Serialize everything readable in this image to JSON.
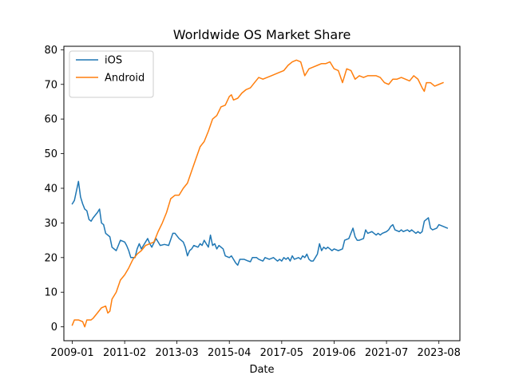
{
  "chart_data": {
    "type": "line",
    "title": "Worldwide OS Market Share",
    "xlabel": "Date",
    "ylabel": "",
    "ylim": [
      -4,
      81
    ],
    "yticks": [
      0,
      10,
      20,
      30,
      40,
      50,
      60,
      70,
      80
    ],
    "xlim": [
      "2008-09-15",
      "2024-06-15"
    ],
    "xticks": [
      "2009-01",
      "2011-02",
      "2013-03",
      "2015-04",
      "2017-05",
      "2019-06",
      "2021-07",
      "2023-08"
    ],
    "grid": false,
    "legend": {
      "position": "top-left"
    },
    "series": [
      {
        "name": "iOS",
        "color": "#1f77b4",
        "points": [
          [
            "2009-01",
            35.5
          ],
          [
            "2009-02",
            36.5
          ],
          [
            "2009-04",
            42.0
          ],
          [
            "2009-05",
            37.5
          ],
          [
            "2009-06",
            35.5
          ],
          [
            "2009-07",
            34.0
          ],
          [
            "2009-08",
            33.5
          ],
          [
            "2009-09",
            31.0
          ],
          [
            "2009-10",
            30.5
          ],
          [
            "2009-11",
            31.5
          ],
          [
            "2010-01",
            33.0
          ],
          [
            "2010-02",
            34.0
          ],
          [
            "2010-03",
            30.0
          ],
          [
            "2010-04",
            29.5
          ],
          [
            "2010-05",
            27.0
          ],
          [
            "2010-07",
            26.0
          ],
          [
            "2010-08",
            23.0
          ],
          [
            "2010-10",
            22.0
          ],
          [
            "2010-11",
            23.5
          ],
          [
            "2010-12",
            25.0
          ],
          [
            "2011-02",
            24.5
          ],
          [
            "2011-03",
            23.5
          ],
          [
            "2011-04",
            22.0
          ],
          [
            "2011-05",
            20.0
          ],
          [
            "2011-07",
            20.0
          ],
          [
            "2011-08",
            22.5
          ],
          [
            "2011-09",
            24.0
          ],
          [
            "2011-10",
            22.5
          ],
          [
            "2011-11",
            23.5
          ],
          [
            "2012-01",
            25.5
          ],
          [
            "2012-02",
            24.0
          ],
          [
            "2012-03",
            23.0
          ],
          [
            "2012-05",
            25.5
          ],
          [
            "2012-06",
            24.5
          ],
          [
            "2012-07",
            23.5
          ],
          [
            "2012-09",
            23.8
          ],
          [
            "2012-11",
            23.5
          ],
          [
            "2013-01",
            27.0
          ],
          [
            "2013-02",
            27.0
          ],
          [
            "2013-04",
            25.5
          ],
          [
            "2013-06",
            24.5
          ],
          [
            "2013-07",
            23.0
          ],
          [
            "2013-08",
            20.5
          ],
          [
            "2013-09",
            22.0
          ],
          [
            "2013-10",
            22.5
          ],
          [
            "2013-11",
            23.5
          ],
          [
            "2014-01",
            23.0
          ],
          [
            "2014-02",
            24.0
          ],
          [
            "2014-03",
            23.5
          ],
          [
            "2014-04",
            25.0
          ],
          [
            "2014-05",
            24.0
          ],
          [
            "2014-06",
            23.0
          ],
          [
            "2014-07",
            26.5
          ],
          [
            "2014-08",
            23.5
          ],
          [
            "2014-09",
            24.0
          ],
          [
            "2014-10",
            22.5
          ],
          [
            "2014-11",
            23.5
          ],
          [
            "2015-01",
            22.5
          ],
          [
            "2015-02",
            20.5
          ],
          [
            "2015-04",
            20.0
          ],
          [
            "2015-05",
            20.5
          ],
          [
            "2015-06",
            19.5
          ],
          [
            "2015-07",
            18.5
          ],
          [
            "2015-08",
            17.8
          ],
          [
            "2015-09",
            19.5
          ],
          [
            "2015-11",
            19.5
          ],
          [
            "2016-01",
            19.0
          ],
          [
            "2016-02",
            18.8
          ],
          [
            "2016-03",
            20.0
          ],
          [
            "2016-05",
            20.0
          ],
          [
            "2016-06",
            19.5
          ],
          [
            "2016-08",
            19.0
          ],
          [
            "2016-09",
            20.0
          ],
          [
            "2016-11",
            19.5
          ],
          [
            "2017-01",
            20.0
          ],
          [
            "2017-03",
            19.0
          ],
          [
            "2017-04",
            19.5
          ],
          [
            "2017-05",
            19.0
          ],
          [
            "2017-06",
            20.0
          ],
          [
            "2017-07",
            19.5
          ],
          [
            "2017-08",
            20.0
          ],
          [
            "2017-09",
            19.0
          ],
          [
            "2017-10",
            20.5
          ],
          [
            "2017-11",
            19.5
          ],
          [
            "2018-01",
            20.0
          ],
          [
            "2018-02",
            19.5
          ],
          [
            "2018-03",
            20.5
          ],
          [
            "2018-04",
            20.0
          ],
          [
            "2018-05",
            21.0
          ],
          [
            "2018-06",
            19.5
          ],
          [
            "2018-07",
            19.0
          ],
          [
            "2018-08",
            19.0
          ],
          [
            "2018-09",
            20.0
          ],
          [
            "2018-10",
            21.0
          ],
          [
            "2018-11",
            24.0
          ],
          [
            "2018-12",
            22.0
          ],
          [
            "2019-01",
            23.0
          ],
          [
            "2019-02",
            22.5
          ],
          [
            "2019-03",
            23.0
          ],
          [
            "2019-04",
            22.5
          ],
          [
            "2019-05",
            22.0
          ],
          [
            "2019-06",
            22.5
          ],
          [
            "2019-08",
            22.0
          ],
          [
            "2019-10",
            22.5
          ],
          [
            "2019-11",
            25.0
          ],
          [
            "2020-01",
            25.5
          ],
          [
            "2020-03",
            28.5
          ],
          [
            "2020-04",
            26.0
          ],
          [
            "2020-05",
            25.0
          ],
          [
            "2020-06",
            25.0
          ],
          [
            "2020-08",
            25.5
          ],
          [
            "2020-09",
            28.0
          ],
          [
            "2020-10",
            27.0
          ],
          [
            "2020-12",
            27.5
          ],
          [
            "2021-01",
            27.0
          ],
          [
            "2021-02",
            26.5
          ],
          [
            "2021-03",
            27.0
          ],
          [
            "2021-04",
            26.5
          ],
          [
            "2021-05",
            27.0
          ],
          [
            "2021-07",
            27.5
          ],
          [
            "2021-08",
            28.0
          ],
          [
            "2021-09",
            29.0
          ],
          [
            "2021-10",
            29.5
          ],
          [
            "2021-11",
            28.0
          ],
          [
            "2022-01",
            27.5
          ],
          [
            "2022-02",
            28.0
          ],
          [
            "2022-03",
            27.5
          ],
          [
            "2022-05",
            28.0
          ],
          [
            "2022-06",
            27.5
          ],
          [
            "2022-07",
            28.0
          ],
          [
            "2022-09",
            27.0
          ],
          [
            "2022-10",
            27.5
          ],
          [
            "2022-11",
            27.0
          ],
          [
            "2022-12",
            27.5
          ],
          [
            "2023-01",
            30.5
          ],
          [
            "2023-03",
            31.5
          ],
          [
            "2023-04",
            28.5
          ],
          [
            "2023-05",
            28.0
          ],
          [
            "2023-07",
            28.5
          ],
          [
            "2023-08",
            29.5
          ],
          [
            "2023-10",
            29.0
          ],
          [
            "2023-12",
            28.5
          ]
        ]
      },
      {
        "name": "Android",
        "color": "#ff7f0e",
        "points": [
          [
            "2009-01",
            0.5
          ],
          [
            "2009-02",
            2.0
          ],
          [
            "2009-04",
            2.0
          ],
          [
            "2009-06",
            1.5
          ],
          [
            "2009-07",
            0.0
          ],
          [
            "2009-08",
            2.0
          ],
          [
            "2009-10",
            2.0
          ],
          [
            "2009-11",
            2.5
          ],
          [
            "2010-01",
            4.0
          ],
          [
            "2010-03",
            5.5
          ],
          [
            "2010-05",
            6.0
          ],
          [
            "2010-06",
            4.0
          ],
          [
            "2010-07",
            4.5
          ],
          [
            "2010-08",
            8.0
          ],
          [
            "2010-10",
            10.0
          ],
          [
            "2010-12",
            13.5
          ],
          [
            "2011-02",
            15.0
          ],
          [
            "2011-04",
            17.0
          ],
          [
            "2011-06",
            19.5
          ],
          [
            "2011-08",
            21.0
          ],
          [
            "2011-10",
            22.0
          ],
          [
            "2011-12",
            23.5
          ],
          [
            "2012-02",
            24.0
          ],
          [
            "2012-04",
            24.5
          ],
          [
            "2012-06",
            27.5
          ],
          [
            "2012-08",
            30.0
          ],
          [
            "2012-10",
            33.0
          ],
          [
            "2012-12",
            37.0
          ],
          [
            "2013-02",
            38.0
          ],
          [
            "2013-04",
            38.0
          ],
          [
            "2013-06",
            40.0
          ],
          [
            "2013-08",
            41.5
          ],
          [
            "2013-10",
            45.0
          ],
          [
            "2013-12",
            48.5
          ],
          [
            "2014-02",
            52.0
          ],
          [
            "2014-04",
            53.5
          ],
          [
            "2014-06",
            56.5
          ],
          [
            "2014-08",
            60.0
          ],
          [
            "2014-10",
            61.0
          ],
          [
            "2014-12",
            63.5
          ],
          [
            "2015-02",
            64.0
          ],
          [
            "2015-04",
            66.5
          ],
          [
            "2015-05",
            67.0
          ],
          [
            "2015-06",
            65.5
          ],
          [
            "2015-08",
            66.0
          ],
          [
            "2015-10",
            67.5
          ],
          [
            "2015-12",
            68.5
          ],
          [
            "2016-02",
            69.0
          ],
          [
            "2016-04",
            70.5
          ],
          [
            "2016-06",
            72.0
          ],
          [
            "2016-08",
            71.5
          ],
          [
            "2016-10",
            72.0
          ],
          [
            "2016-12",
            72.5
          ],
          [
            "2017-02",
            73.0
          ],
          [
            "2017-04",
            73.5
          ],
          [
            "2017-06",
            74.0
          ],
          [
            "2017-08",
            75.5
          ],
          [
            "2017-10",
            76.5
          ],
          [
            "2017-12",
            77.0
          ],
          [
            "2018-02",
            76.5
          ],
          [
            "2018-04",
            72.5
          ],
          [
            "2018-06",
            74.5
          ],
          [
            "2018-08",
            75.0
          ],
          [
            "2018-10",
            75.5
          ],
          [
            "2018-12",
            76.0
          ],
          [
            "2019-02",
            76.0
          ],
          [
            "2019-04",
            76.5
          ],
          [
            "2019-06",
            74.5
          ],
          [
            "2019-08",
            74.0
          ],
          [
            "2019-10",
            70.5
          ],
          [
            "2019-12",
            74.5
          ],
          [
            "2020-02",
            74.0
          ],
          [
            "2020-04",
            71.5
          ],
          [
            "2020-06",
            72.5
          ],
          [
            "2020-08",
            72.0
          ],
          [
            "2020-10",
            72.5
          ],
          [
            "2020-12",
            72.5
          ],
          [
            "2021-02",
            72.5
          ],
          [
            "2021-04",
            72.0
          ],
          [
            "2021-06",
            70.5
          ],
          [
            "2021-08",
            70.0
          ],
          [
            "2021-10",
            71.5
          ],
          [
            "2021-12",
            71.5
          ],
          [
            "2022-02",
            72.0
          ],
          [
            "2022-04",
            71.5
          ],
          [
            "2022-06",
            71.0
          ],
          [
            "2022-08",
            72.5
          ],
          [
            "2022-10",
            71.5
          ],
          [
            "2022-12",
            69.0
          ],
          [
            "2023-01",
            68.0
          ],
          [
            "2023-02",
            70.5
          ],
          [
            "2023-04",
            70.5
          ],
          [
            "2023-06",
            69.5
          ],
          [
            "2023-08",
            70.0
          ],
          [
            "2023-10",
            70.5
          ]
        ]
      }
    ]
  }
}
